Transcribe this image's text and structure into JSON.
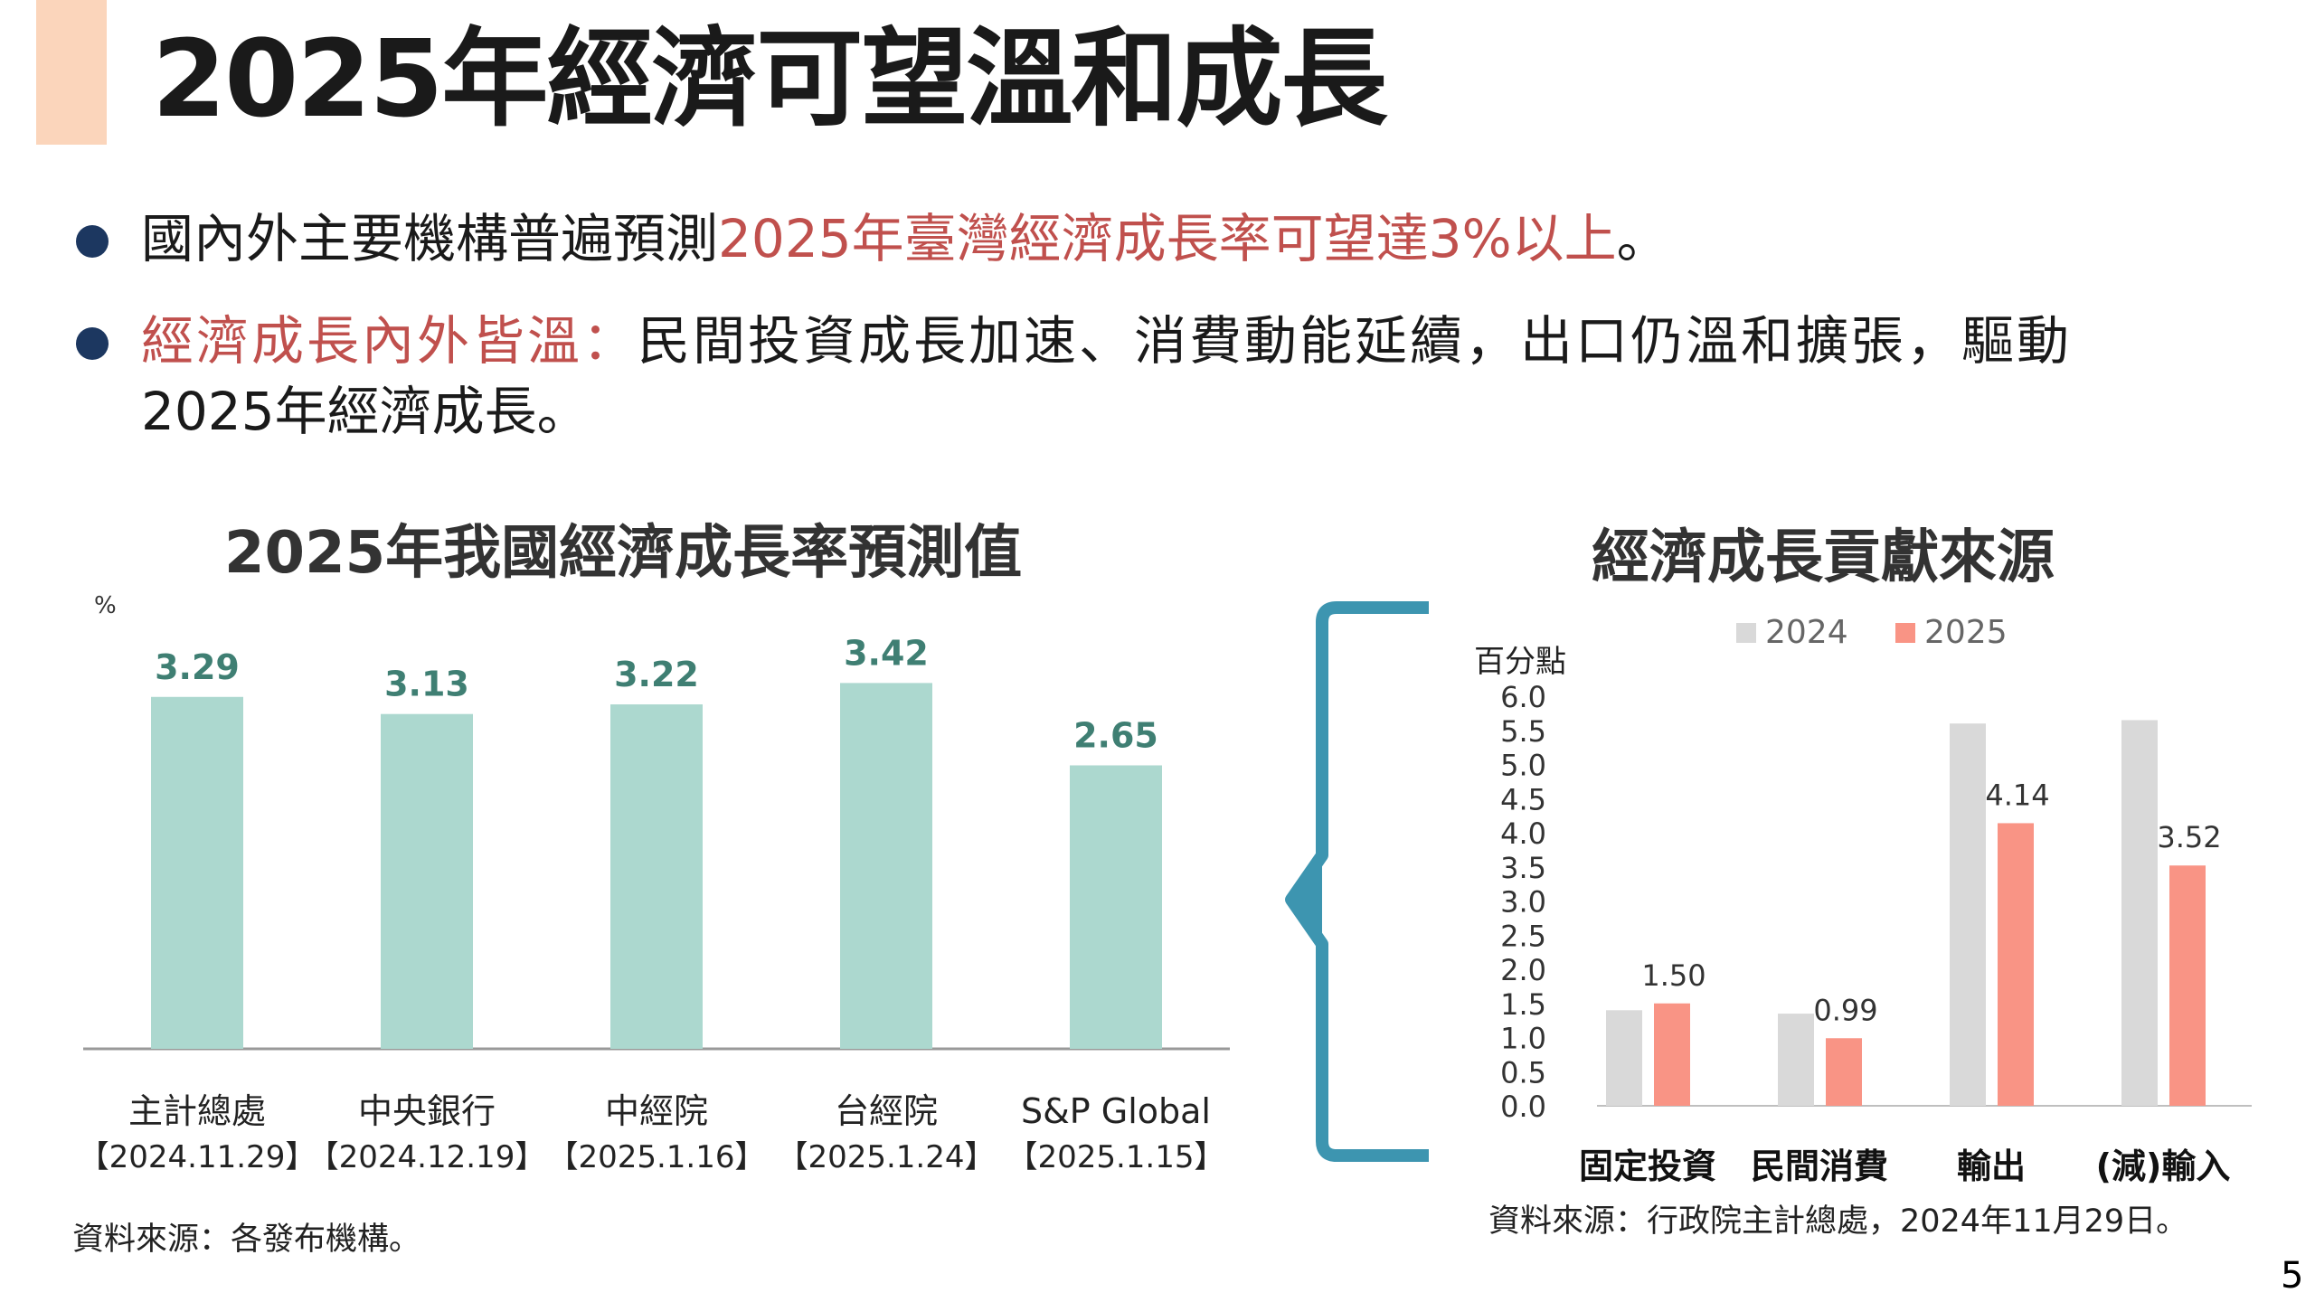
{
  "slide": {
    "title": "2025年經濟可望溫和成長",
    "page_number": "5",
    "accent_color": "#fbd5bb"
  },
  "bullets": {
    "b1_prefix": "國內外主要機構普遍預測",
    "b1_highlight": "2025年臺灣經濟成長率可望達3%以上",
    "b1_suffix": "。",
    "b2_highlight": "經濟成長內外皆溫：",
    "b2_text": "民間投資成長加速、消費動能延續，出口仍溫和擴張，驅動",
    "b2_line2": "2025年經濟成長。"
  },
  "left_chart": {
    "heading": "2025年我國經濟成長率預測值",
    "source": "資料來源：各發布機構。"
  },
  "right_chart": {
    "heading": "經濟成長貢獻來源",
    "source": "資料來源：行政院主計總處，2024年11月29日。"
  },
  "chart_data": [
    {
      "type": "bar",
      "title": "2025年我國經濟成長率預測值",
      "ylabel": "%",
      "categories": [
        "主計總處",
        "中央銀行",
        "中經院",
        "台經院",
        "S&P Global"
      ],
      "category_dates": [
        "【2024.11.29】",
        "【2024.12.19】",
        "【2025.1.16】",
        "【2025.1.24】",
        "【2025.1.15】"
      ],
      "values": [
        3.29,
        3.13,
        3.22,
        3.42,
        2.65
      ],
      "value_labels": [
        "3.29",
        "3.13",
        "3.22",
        "3.42",
        "2.65"
      ],
      "ylim": [
        0,
        3.55
      ],
      "grid": false,
      "bar_color": "#acd8cf",
      "label_color": "#3f7f73"
    },
    {
      "type": "bar",
      "title": "經濟成長貢獻來源",
      "ylabel": "百分點",
      "categories": [
        "固定投資",
        "民間消費",
        "輸出",
        "(減)輸入"
      ],
      "series": [
        {
          "name": "2024",
          "values": [
            1.4,
            1.35,
            5.6,
            5.65
          ],
          "labels": [
            "",
            "",
            "",
            ""
          ],
          "color": "#d9d9d9"
        },
        {
          "name": "2025",
          "values": [
            1.5,
            0.99,
            4.14,
            3.52
          ],
          "labels": [
            "1.50",
            "0.99",
            "4.14",
            "3.52"
          ],
          "color": "#f99485"
        }
      ],
      "yticks": [
        "0.0",
        "0.5",
        "1.0",
        "1.5",
        "2.0",
        "2.5",
        "3.0",
        "3.5",
        "4.0",
        "4.5",
        "5.0",
        "5.5",
        "6.0"
      ],
      "ylim": [
        0,
        6.0
      ],
      "grid": false,
      "legend_position": "top"
    }
  ]
}
